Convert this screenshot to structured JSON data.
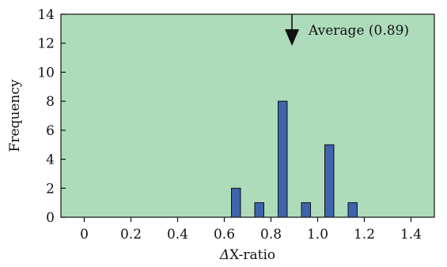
{
  "chart_data": {
    "type": "bar",
    "title": "",
    "xlabel_prefix": "Δ",
    "xlabel_rest": "X-ratio",
    "ylabel": "Frequency",
    "xlim": [
      -0.1,
      1.5
    ],
    "ylim": [
      0,
      14
    ],
    "x_ticks": [
      0,
      0.2,
      0.4,
      0.6,
      0.8,
      1.0,
      1.2,
      1.4
    ],
    "x_tick_labels": [
      "0",
      "0.2",
      "0.4",
      "0.6",
      "0.8",
      "1.0",
      "1.2",
      "1.4"
    ],
    "y_ticks": [
      0,
      2,
      4,
      6,
      8,
      10,
      12,
      14
    ],
    "y_tick_labels": [
      "0",
      "2",
      "4",
      "6",
      "8",
      "10",
      "12",
      "14"
    ],
    "bin_width": 0.1,
    "bars": [
      {
        "x": 0.65,
        "value": 2
      },
      {
        "x": 0.75,
        "value": 1
      },
      {
        "x": 0.85,
        "value": 8
      },
      {
        "x": 0.95,
        "value": 1
      },
      {
        "x": 1.05,
        "value": 5
      },
      {
        "x": 1.15,
        "value": 1
      }
    ],
    "average": 0.89,
    "annotation": "Average (0.89)",
    "grid": false,
    "legend": "none"
  },
  "colors": {
    "plot_background": "#aedcbb",
    "bar_fill": "#3f63ad",
    "bar_stroke": "#111111",
    "axis": "#111111"
  }
}
